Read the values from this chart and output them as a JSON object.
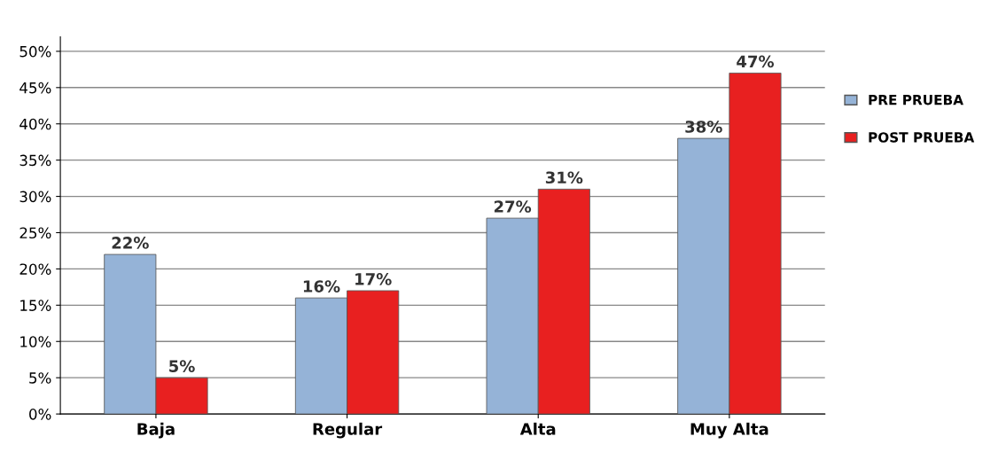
{
  "chart_data": {
    "type": "bar",
    "categories": [
      "Baja",
      "Regular",
      "Alta",
      "Muy Alta"
    ],
    "series": [
      {
        "name": "PRE PRUEBA",
        "color": "#95b3d7",
        "values": [
          22,
          16,
          27,
          38
        ],
        "value_labels": [
          "22%",
          "16%",
          "27%",
          "38%"
        ]
      },
      {
        "name": "POST PRUEBA",
        "color": "#e82020",
        "values": [
          5,
          17,
          31,
          47
        ],
        "value_labels": [
          "5%",
          "17%",
          "31%",
          "47%"
        ]
      }
    ],
    "ylim": [
      0,
      52
    ],
    "yticks": [
      {
        "value": 0,
        "label": "0%"
      },
      {
        "value": 5,
        "label": "5%"
      },
      {
        "value": 10,
        "label": "10%"
      },
      {
        "value": 15,
        "label": "15%"
      },
      {
        "value": 20,
        "label": "20%"
      },
      {
        "value": 25,
        "label": "25%"
      },
      {
        "value": 30,
        "label": "30%"
      },
      {
        "value": 35,
        "label": "35%"
      },
      {
        "value": 40,
        "label": "40%"
      },
      {
        "value": 45,
        "label": "45%"
      },
      {
        "value": 50,
        "label": "50%"
      }
    ],
    "grid": "y",
    "legend": "right"
  }
}
